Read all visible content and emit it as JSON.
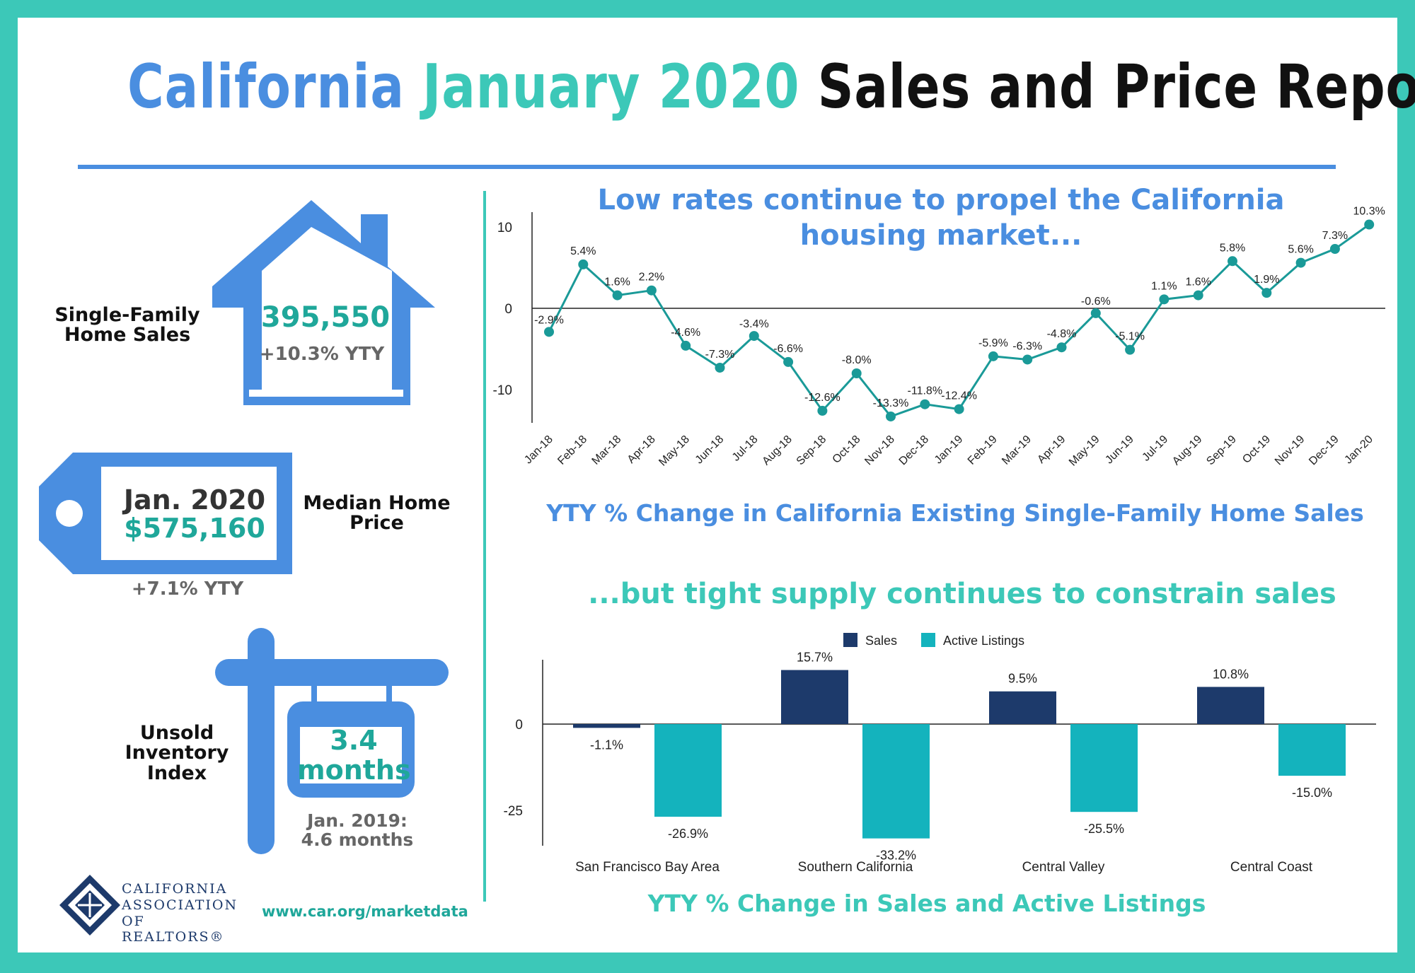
{
  "title": {
    "part1": "California",
    "part2": "January 2020",
    "part3": "Sales and Price Report"
  },
  "colors": {
    "blue": "#4a8ee0",
    "teal": "#3cc8b8",
    "navy": "#1d3a6b",
    "bar_teal": "#14b3bd",
    "line": "#1a9a98"
  },
  "left": {
    "sales": {
      "label": "Single-Family Home Sales",
      "value": "395,550",
      "change": "+10.3% YTY",
      "icon": "house-icon"
    },
    "price": {
      "label": "Median Home Price",
      "period": "Jan. 2020",
      "value": "$575,160",
      "change": "+7.1% YTY",
      "icon": "price-tag-icon"
    },
    "inventory": {
      "label": "Unsold Inventory Index",
      "value": "3.4",
      "unit": "months",
      "prior_label": "Jan. 2019:",
      "prior_value": "4.6 months",
      "icon": "signpost-icon"
    }
  },
  "footer": {
    "org_line1": "CALIFORNIA",
    "org_line2": "ASSOCIATION",
    "org_line3": "OF REALTORS®",
    "url": "www.car.org/marketdata"
  },
  "chart1_heading": "Low rates continue to propel the California housing market...",
  "chart1_caption": "YTY % Change in California Existing Single-Family Home Sales",
  "chart2_heading": "...but tight supply continues to constrain sales",
  "chart2_caption": "YTY % Change in Sales and Active Listings",
  "chart_data": [
    {
      "type": "line",
      "x": [
        "Jan-18",
        "Feb-18",
        "Mar-18",
        "Apr-18",
        "May-18",
        "Jun-18",
        "Jul-18",
        "Aug-18",
        "Sep-18",
        "Oct-18",
        "Nov-18",
        "Dec-18",
        "Jan-19",
        "Feb-19",
        "Mar-19",
        "Apr-19",
        "May-19",
        "Jun-19",
        "Jul-19",
        "Aug-19",
        "Sep-19",
        "Oct-19",
        "Nov-19",
        "Dec-19",
        "Jan-20"
      ],
      "values": [
        -2.9,
        5.4,
        1.6,
        2.2,
        -4.6,
        -7.3,
        -3.4,
        -6.6,
        -12.6,
        -8.0,
        -13.3,
        -11.8,
        -12.4,
        -5.9,
        -6.3,
        -4.8,
        -0.6,
        -5.1,
        1.1,
        1.6,
        5.8,
        1.9,
        5.6,
        7.3,
        10.3
      ],
      "labels": [
        "-2.9%",
        "5.4%",
        "1.6%",
        "2.2%",
        "-4.6%",
        "-7.3%",
        "-3.4%",
        "-6.6%",
        "-12.6%",
        "-8.0%",
        "-13.3%",
        "-11.8%",
        "-12.4%",
        "-5.9%",
        "-6.3%",
        "-4.8%",
        "-0.6%",
        "-5.1%",
        "1.1%",
        "1.6%",
        "5.8%",
        "1.9%",
        "5.6%",
        "7.3%",
        "10.3%"
      ],
      "yticks": [
        "10",
        "0",
        "-10"
      ],
      "ytick_values": [
        10,
        0,
        -10
      ],
      "ylim": [
        -14,
        11.5
      ]
    },
    {
      "type": "bar",
      "categories": [
        "San Francisco Bay Area",
        "Southern California",
        "Central Valley",
        "Central Coast"
      ],
      "series": [
        {
          "name": "Sales",
          "values": [
            -1.1,
            15.7,
            9.5,
            10.8
          ],
          "labels": [
            "-1.1%",
            "15.7%",
            "9.5%",
            "10.8%"
          ]
        },
        {
          "name": "Active Listings",
          "values": [
            -26.9,
            -33.2,
            -25.5,
            -15.0
          ],
          "labels": [
            "-26.9%",
            "-33.2%",
            "-25.5%",
            "-15.0%"
          ]
        }
      ],
      "yticks": [
        "0",
        "-25"
      ],
      "ytick_values": [
        0,
        -25
      ],
      "ylim": [
        -36,
        19
      ],
      "legend": "top"
    }
  ]
}
